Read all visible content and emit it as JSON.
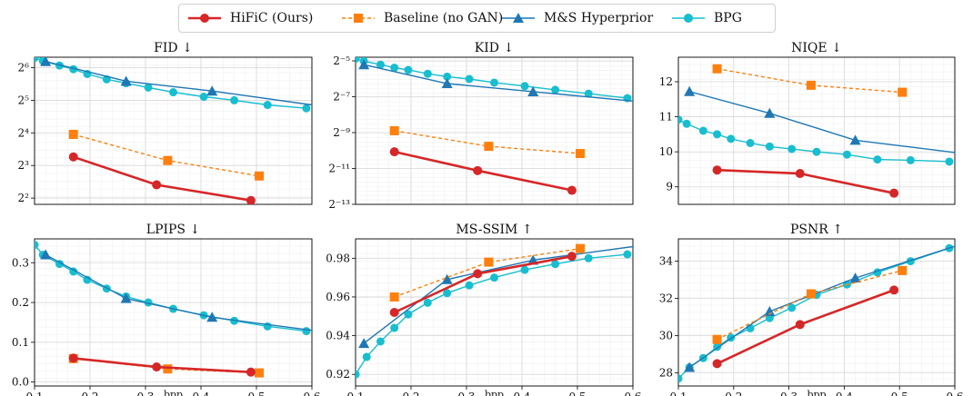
{
  "colors": {
    "hific": "#d62728",
    "baseline": "#ff7f0e",
    "ms": "#1f77b4",
    "bpg": "#17becf"
  },
  "legend": [
    {
      "key": "hific",
      "label": "HiFiC (Ours)",
      "style": "solid",
      "marker": "circle"
    },
    {
      "key": "baseline",
      "label": "Baseline (no GAN)",
      "style": "dashed",
      "marker": "square"
    },
    {
      "key": "ms",
      "label": "M&S Hyperprior",
      "style": "solid",
      "marker": "triangle"
    },
    {
      "key": "bpg",
      "label": "BPG",
      "style": "solid",
      "marker": "circle"
    }
  ],
  "chart_data": [
    {
      "type": "line",
      "title": "FID ↓",
      "xlabel": "",
      "scale": "log2",
      "xlim": [
        0.1,
        0.6
      ],
      "ylim": [
        3.5,
        80
      ],
      "yticks": [
        {
          "v": 4,
          "label": "2²"
        },
        {
          "v": 8,
          "label": "2³"
        },
        {
          "v": 16,
          "label": "2⁴"
        },
        {
          "v": 32,
          "label": "2⁵"
        },
        {
          "v": 64,
          "label": "2⁶"
        }
      ],
      "series": [
        {
          "name": "HiFiC (Ours)",
          "key": "hific",
          "x": [
            0.17,
            0.32,
            0.49
          ],
          "y": [
            9.6,
            5.3,
            3.8
          ]
        },
        {
          "name": "Baseline (no GAN)",
          "key": "baseline",
          "x": [
            0.17,
            0.34,
            0.505
          ],
          "y": [
            15.5,
            8.9,
            6.4
          ]
        },
        {
          "name": "M&S Hyperprior",
          "key": "ms",
          "x": [
            0.12,
            0.265,
            0.42,
            0.6
          ],
          "y": [
            73,
            48,
            39,
            29
          ]
        },
        {
          "name": "BPG",
          "key": "bpg",
          "x": [
            0.1,
            0.115,
            0.145,
            0.17,
            0.195,
            0.23,
            0.265,
            0.305,
            0.35,
            0.405,
            0.46,
            0.52,
            0.59
          ],
          "y": [
            79,
            74,
            67,
            62,
            56,
            50,
            46,
            42,
            38,
            34.5,
            32,
            29,
            27
          ]
        }
      ]
    },
    {
      "type": "line",
      "title": "KID ↓",
      "xlabel": "",
      "scale": "log2",
      "xlim": [
        0.1,
        0.6
      ],
      "ylim": [
        0.000122,
        0.036
      ],
      "yticks": [
        {
          "v": 0.0001220703,
          "label": "2⁻¹³"
        },
        {
          "v": 0.00048828,
          "label": "2⁻¹¹"
        },
        {
          "v": 0.001953125,
          "label": "2⁻⁹"
        },
        {
          "v": 0.0078125,
          "label": "2⁻⁷"
        },
        {
          "v": 0.03125,
          "label": "2⁻⁵"
        }
      ],
      "series": [
        {
          "name": "HiFiC (Ours)",
          "key": "hific",
          "x": [
            0.17,
            0.32,
            0.49
          ],
          "y": [
            0.00093,
            0.00045,
            0.00021
          ]
        },
        {
          "name": "Baseline (no GAN)",
          "key": "baseline",
          "x": [
            0.17,
            0.34,
            0.505
          ],
          "y": [
            0.0021,
            0.00115,
            0.00087
          ]
        },
        {
          "name": "M&S Hyperprior",
          "key": "ms",
          "x": [
            0.115,
            0.265,
            0.42,
            0.6
          ],
          "y": [
            0.027,
            0.013,
            0.0095,
            0.0066
          ]
        },
        {
          "name": "BPG",
          "key": "bpg",
          "x": [
            0.1,
            0.115,
            0.145,
            0.17,
            0.195,
            0.23,
            0.265,
            0.305,
            0.35,
            0.405,
            0.46,
            0.52,
            0.59
          ],
          "y": [
            0.034,
            0.031,
            0.027,
            0.024,
            0.022,
            0.019,
            0.017,
            0.0155,
            0.0135,
            0.0118,
            0.0102,
            0.0088,
            0.0074
          ]
        }
      ]
    },
    {
      "type": "line",
      "title": "NIQE ↓",
      "xlabel": "",
      "scale": "linear",
      "xlim": [
        0.1,
        0.6
      ],
      "ylim": [
        8.5,
        12.7
      ],
      "yticks": [
        {
          "v": 9,
          "label": "9"
        },
        {
          "v": 10,
          "label": "10"
        },
        {
          "v": 11,
          "label": "11"
        },
        {
          "v": 12,
          "label": "12"
        }
      ],
      "series": [
        {
          "name": "HiFiC (Ours)",
          "key": "hific",
          "x": [
            0.17,
            0.32,
            0.49
          ],
          "y": [
            9.48,
            9.38,
            8.82
          ]
        },
        {
          "name": "Baseline (no GAN)",
          "key": "baseline",
          "x": [
            0.17,
            0.34,
            0.505
          ],
          "y": [
            12.37,
            11.9,
            11.7
          ]
        },
        {
          "name": "M&S Hyperprior",
          "key": "ms",
          "x": [
            0.12,
            0.265,
            0.42,
            0.6
          ],
          "y": [
            11.72,
            11.1,
            10.33,
            9.98
          ]
        },
        {
          "name": "BPG",
          "key": "bpg",
          "x": [
            0.1,
            0.115,
            0.145,
            0.17,
            0.195,
            0.23,
            0.265,
            0.305,
            0.35,
            0.405,
            0.46,
            0.52,
            0.59
          ],
          "y": [
            10.92,
            10.8,
            10.6,
            10.5,
            10.37,
            10.25,
            10.15,
            10.08,
            10.0,
            9.92,
            9.78,
            9.76,
            9.72
          ]
        }
      ]
    },
    {
      "type": "line",
      "title": "LPIPS ↓",
      "xlabel": "",
      "scale": "linear",
      "xlim": [
        0.1,
        0.6
      ],
      "ylim": [
        -0.01,
        0.36
      ],
      "xticks": [
        {
          "v": 0.1,
          "label": "0.1"
        },
        {
          "v": 0.2,
          "label": "0.2"
        },
        {
          "v": 0.3,
          "label": "0.3"
        },
        {
          "v": 0.4,
          "label": "0.4"
        },
        {
          "v": 0.5,
          "label": "0.5"
        },
        {
          "v": 0.6,
          "label": "0.6"
        }
      ],
      "xunit": "bpp",
      "yticks": [
        {
          "v": 0.0,
          "label": "0.0"
        },
        {
          "v": 0.1,
          "label": "0.1"
        },
        {
          "v": 0.2,
          "label": "0.2"
        },
        {
          "v": 0.3,
          "label": "0.3"
        }
      ],
      "series": [
        {
          "name": "HiFiC (Ours)",
          "key": "hific",
          "x": [
            0.17,
            0.32,
            0.49
          ],
          "y": [
            0.06,
            0.038,
            0.025
          ]
        },
        {
          "name": "Baseline (no GAN)",
          "key": "baseline",
          "x": [
            0.17,
            0.34,
            0.505
          ],
          "y": [
            0.059,
            0.033,
            0.023
          ]
        },
        {
          "name": "M&S Hyperprior",
          "key": "ms",
          "x": [
            0.12,
            0.265,
            0.42,
            0.6
          ],
          "y": [
            0.32,
            0.21,
            0.163,
            0.13
          ]
        },
        {
          "name": "BPG",
          "key": "bpg",
          "x": [
            0.1,
            0.115,
            0.145,
            0.17,
            0.195,
            0.23,
            0.265,
            0.305,
            0.35,
            0.405,
            0.46,
            0.52,
            0.59
          ],
          "y": [
            0.345,
            0.32,
            0.297,
            0.278,
            0.257,
            0.235,
            0.215,
            0.2,
            0.184,
            0.168,
            0.154,
            0.14,
            0.128
          ]
        }
      ]
    },
    {
      "type": "line",
      "title": "MS-SSIM ↑",
      "xlabel": "",
      "scale": "linear",
      "xlim": [
        0.1,
        0.6
      ],
      "ylim": [
        0.914,
        0.99
      ],
      "xticks": [
        {
          "v": 0.1,
          "label": "0.1"
        },
        {
          "v": 0.2,
          "label": "0.2"
        },
        {
          "v": 0.3,
          "label": "0.3"
        },
        {
          "v": 0.4,
          "label": "0.4"
        },
        {
          "v": 0.5,
          "label": "0.5"
        },
        {
          "v": 0.6,
          "label": "0.6"
        }
      ],
      "xunit": "bpp",
      "yticks": [
        {
          "v": 0.92,
          "label": "0.92"
        },
        {
          "v": 0.94,
          "label": "0.94"
        },
        {
          "v": 0.96,
          "label": "0.96"
        },
        {
          "v": 0.98,
          "label": "0.98"
        }
      ],
      "series": [
        {
          "name": "HiFiC (Ours)",
          "key": "hific",
          "x": [
            0.17,
            0.32,
            0.49
          ],
          "y": [
            0.952,
            0.972,
            0.981
          ]
        },
        {
          "name": "Baseline (no GAN)",
          "key": "baseline",
          "x": [
            0.17,
            0.34,
            0.505
          ],
          "y": [
            0.96,
            0.978,
            0.985
          ]
        },
        {
          "name": "M&S Hyperprior",
          "key": "ms",
          "x": [
            0.115,
            0.265,
            0.42,
            0.6
          ],
          "y": [
            0.936,
            0.969,
            0.979,
            0.986
          ]
        },
        {
          "name": "BPG",
          "key": "bpg",
          "x": [
            0.1,
            0.12,
            0.145,
            0.17,
            0.195,
            0.23,
            0.265,
            0.305,
            0.35,
            0.405,
            0.46,
            0.52,
            0.59
          ],
          "y": [
            0.92,
            0.929,
            0.937,
            0.944,
            0.951,
            0.957,
            0.962,
            0.966,
            0.97,
            0.974,
            0.977,
            0.98,
            0.982
          ]
        }
      ]
    },
    {
      "type": "line",
      "title": "PSNR ↑",
      "xlabel": "",
      "scale": "linear",
      "xlim": [
        0.1,
        0.6
      ],
      "ylim": [
        27.3,
        35.2
      ],
      "xticks": [
        {
          "v": 0.1,
          "label": "0.1"
        },
        {
          "v": 0.2,
          "label": "0.2"
        },
        {
          "v": 0.3,
          "label": "0.3"
        },
        {
          "v": 0.4,
          "label": "0.4"
        },
        {
          "v": 0.5,
          "label": "0.5"
        },
        {
          "v": 0.6,
          "label": "0.6"
        }
      ],
      "xunit": "bpp",
      "yticks": [
        {
          "v": 28,
          "label": "28"
        },
        {
          "v": 30,
          "label": "30"
        },
        {
          "v": 32,
          "label": "32"
        },
        {
          "v": 34,
          "label": "34"
        }
      ],
      "series": [
        {
          "name": "HiFiC (Ours)",
          "key": "hific",
          "x": [
            0.17,
            0.32,
            0.49
          ],
          "y": [
            28.5,
            30.6,
            32.45
          ]
        },
        {
          "name": "Baseline (no GAN)",
          "key": "baseline",
          "x": [
            0.17,
            0.34,
            0.505
          ],
          "y": [
            29.8,
            32.25,
            33.5
          ]
        },
        {
          "name": "M&S Hyperprior",
          "key": "ms",
          "x": [
            0.12,
            0.265,
            0.42,
            0.6
          ],
          "y": [
            28.3,
            31.3,
            33.1,
            34.8
          ]
        },
        {
          "name": "BPG",
          "key": "bpg",
          "x": [
            0.1,
            0.12,
            0.145,
            0.17,
            0.195,
            0.23,
            0.265,
            0.305,
            0.35,
            0.405,
            0.46,
            0.52,
            0.59
          ],
          "y": [
            27.7,
            28.3,
            28.8,
            29.4,
            29.9,
            30.4,
            30.95,
            31.5,
            32.2,
            32.75,
            33.4,
            34.0,
            34.7
          ]
        }
      ]
    }
  ]
}
